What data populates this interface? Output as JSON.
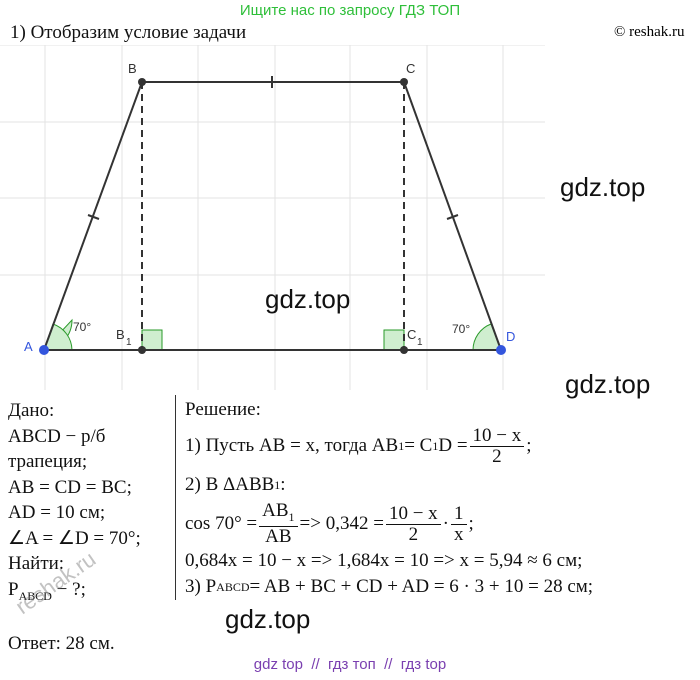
{
  "header": {
    "banner": "Ищите нас по запросу ГДЗ ТОП",
    "step": "1) Отобразим условие задачи",
    "copyright": "© reshak.ru"
  },
  "figure": {
    "labels": {
      "A": "A",
      "B": "B",
      "C": "C",
      "D": "D",
      "B1": "B",
      "B1_sub": "1",
      "C1": "C",
      "C1_sub": "1",
      "angle_A": "70°",
      "angle_D": "70°"
    }
  },
  "given": {
    "lines": [
      [
        "Дано:"
      ],
      [
        "ABCD − р/б"
      ],
      [
        "трапеция;"
      ],
      [
        "AB = CD = BC;"
      ],
      [
        "AD = 10 см;"
      ],
      [
        "∠A = ∠D = 70°;"
      ],
      [
        "Найти:"
      ],
      [
        "P",
        {
          "sub": "ABCD"
        },
        " − ?;"
      ]
    ]
  },
  "solution": {
    "lines": [
      [
        "Решение:"
      ],
      [
        "1) Пусть AB = x, тогда AB",
        {
          "sub": "1"
        },
        " = C",
        {
          "sub": "1"
        },
        "D = ",
        {
          "num": [
            "10 − x"
          ],
          "den": [
            "2"
          ]
        },
        ";"
      ],
      [
        "2) В ΔABB",
        {
          "sub": "1"
        },
        ":"
      ],
      [
        "cos 70° = ",
        {
          "num": [
            "AB",
            {
              "sub": "1"
            }
          ],
          "den": [
            "AB"
          ]
        },
        " => 0,342 = ",
        {
          "num": [
            "10 − x"
          ],
          "den": [
            "2"
          ]
        },
        " · ",
        {
          "num": [
            "1"
          ],
          "den": [
            "x"
          ]
        },
        ";"
      ],
      [
        "0,684x = 10 − x => 1,684x = 10 => x = 5,94 ≈ 6 см;"
      ],
      [
        "3) P",
        {
          "sub": "ABCD"
        },
        " = AB + BC + CD + AD = 6 · 3 + 10 = 28 см;"
      ]
    ]
  },
  "answer": "Ответ: 28 см.",
  "watermarks": [
    "gdz.top",
    "gdz.top",
    "gdz.top",
    "gdz.top",
    "reshak.ru"
  ],
  "footer": "gdz top  //  гдз топ  //  гдз top"
}
